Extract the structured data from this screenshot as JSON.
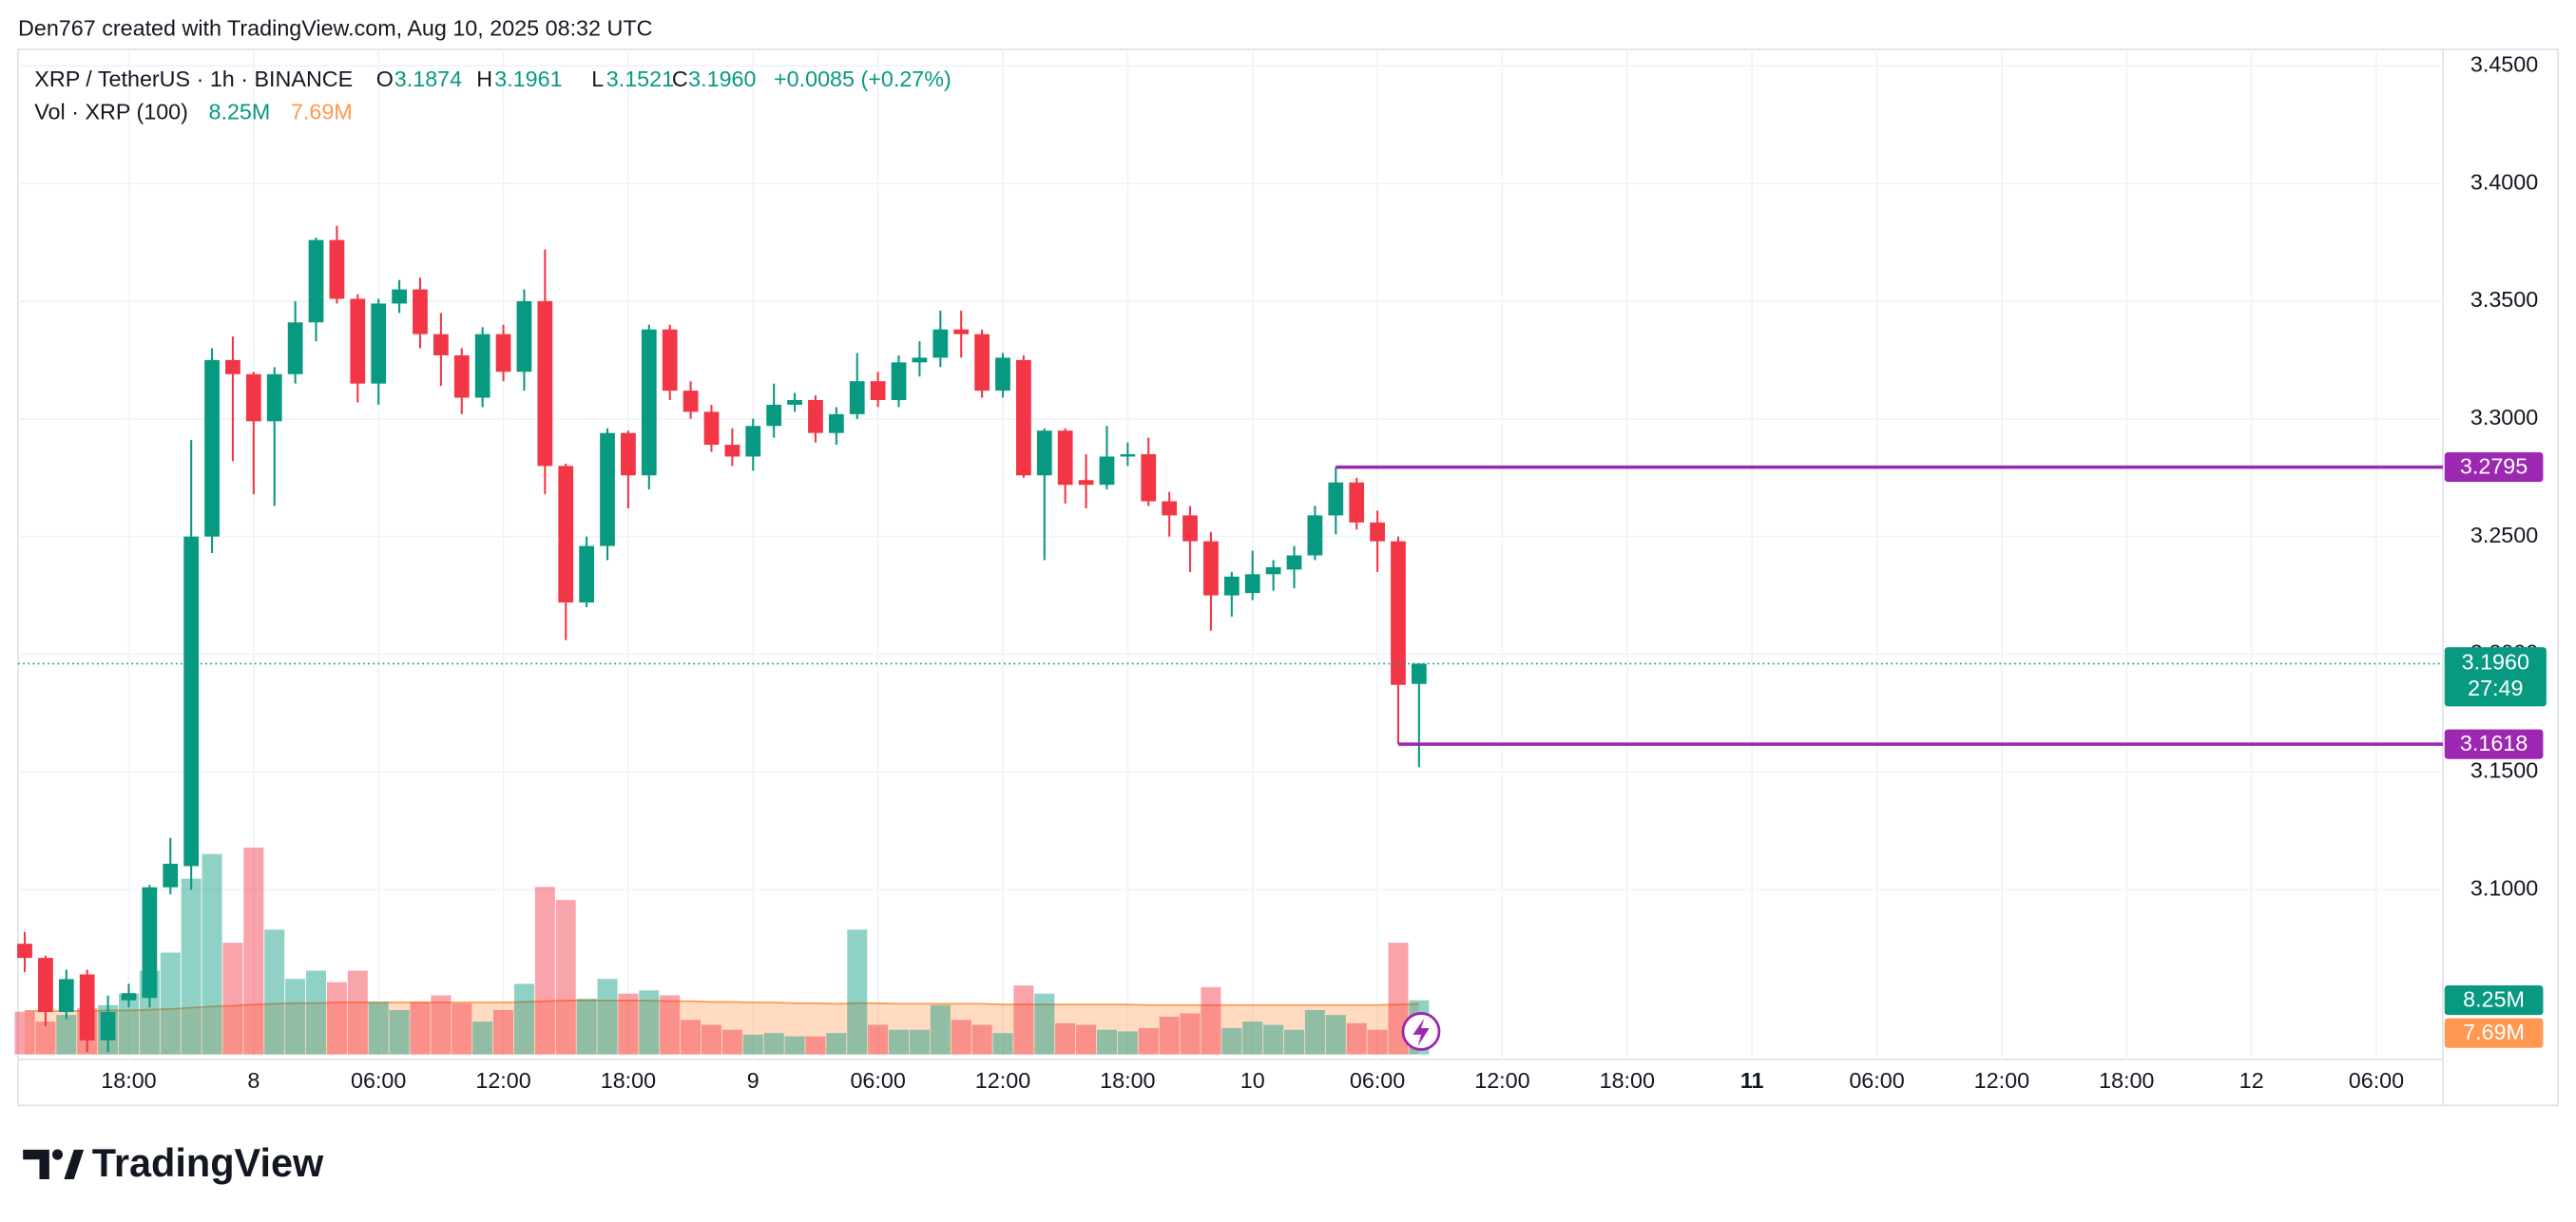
{
  "header": {
    "credit": "Den767 created with TradingView.com, Aug 10, 2025 08:32 UTC"
  },
  "legend": {
    "symbol": "XRP / TetherUS · 1h · BINANCE",
    "o_label": "O",
    "o": "3.1874",
    "h_label": "H",
    "h": "3.1961",
    "l_label": "L",
    "l": "3.1521",
    "c_label": "C",
    "c": "3.1960",
    "change": "+0.0085 (+0.27%)",
    "vol_title": "Vol · XRP (100)",
    "vol": "8.25M",
    "vol_ma": "7.69M"
  },
  "footer": {
    "brand": "TradingView"
  },
  "chart_data": {
    "type": "candlestick",
    "up_color": "#089981",
    "down_color": "#f23645",
    "grid": true,
    "xlim": [
      -0.32,
      116.2
    ],
    "xticks": [
      {
        "value": 5,
        "label": "18:00"
      },
      {
        "value": 11,
        "label": "8"
      },
      {
        "value": 17,
        "label": "06:00"
      },
      {
        "value": 23,
        "label": "12:00"
      },
      {
        "value": 29,
        "label": "18:00"
      },
      {
        "value": 35,
        "label": "9"
      },
      {
        "value": 41,
        "label": "06:00"
      },
      {
        "value": 47,
        "label": "12:00"
      },
      {
        "value": 53,
        "label": "18:00"
      },
      {
        "value": 59,
        "label": "10"
      },
      {
        "value": 65,
        "label": "06:00"
      },
      {
        "value": 71,
        "label": "12:00"
      },
      {
        "value": 77,
        "label": "18:00"
      },
      {
        "value": 83,
        "label": "11"
      },
      {
        "value": 89,
        "label": "06:00"
      },
      {
        "value": 95,
        "label": "12:00"
      },
      {
        "value": 101,
        "label": "18:00"
      },
      {
        "value": 107,
        "label": "12"
      },
      {
        "value": 113,
        "label": "06:00"
      }
    ],
    "ylim": [
      3.03,
      3.457
    ],
    "yticks": [
      {
        "value": 3.1,
        "label": "3.1000"
      },
      {
        "value": 3.15,
        "label": "3.1500"
      },
      {
        "value": 3.2,
        "label": "3.2000"
      },
      {
        "value": 3.25,
        "label": "3.2500"
      },
      {
        "value": 3.3,
        "label": "3.3000"
      },
      {
        "value": 3.35,
        "label": "3.3500"
      },
      {
        "value": 3.4,
        "label": "3.4000"
      },
      {
        "value": 3.45,
        "label": "3.4500"
      }
    ],
    "open": [
      3.077,
      3.071,
      3.048,
      3.064,
      3.036,
      3.053,
      3.054,
      3.101,
      3.11,
      3.25,
      3.325,
      3.319,
      3.299,
      3.319,
      3.341,
      3.376,
      3.351,
      3.315,
      3.349,
      3.355,
      3.336,
      3.327,
      3.309,
      3.336,
      3.32,
      3.35,
      3.28,
      3.222,
      3.246,
      3.294,
      3.276,
      3.338,
      3.312,
      3.303,
      3.289,
      3.284,
      3.297,
      3.306,
      3.308,
      3.294,
      3.302,
      3.316,
      3.308,
      3.324,
      3.326,
      3.338,
      3.336,
      3.312,
      3.325,
      3.276,
      3.295,
      3.274,
      3.272,
      3.284,
      3.285,
      3.265,
      3.259,
      3.248,
      3.225,
      3.226,
      3.234,
      3.236,
      3.242,
      3.259,
      3.273,
      3.256,
      3.248,
      3.1874
    ],
    "high": [
      3.082,
      3.072,
      3.066,
      3.066,
      3.055,
      3.06,
      3.102,
      3.122,
      3.291,
      3.33,
      3.335,
      3.32,
      3.322,
      3.35,
      3.377,
      3.382,
      3.353,
      3.351,
      3.359,
      3.36,
      3.345,
      3.33,
      3.339,
      3.34,
      3.355,
      3.372,
      3.281,
      3.25,
      3.296,
      3.295,
      3.34,
      3.34,
      3.316,
      3.306,
      3.296,
      3.3,
      3.315,
      3.311,
      3.31,
      3.305,
      3.328,
      3.32,
      3.327,
      3.333,
      3.346,
      3.346,
      3.338,
      3.328,
      3.327,
      3.296,
      3.296,
      3.285,
      3.297,
      3.29,
      3.292,
      3.269,
      3.263,
      3.252,
      3.235,
      3.244,
      3.24,
      3.246,
      3.263,
      3.2795,
      3.275,
      3.261,
      3.25,
      3.1961
    ],
    "low": [
      3.065,
      3.042,
      3.045,
      3.031,
      3.031,
      3.05,
      3.05,
      3.098,
      3.1,
      3.243,
      3.282,
      3.268,
      3.263,
      3.315,
      3.333,
      3.349,
      3.307,
      3.306,
      3.345,
      3.33,
      3.314,
      3.302,
      3.305,
      3.316,
      3.312,
      3.268,
      3.206,
      3.22,
      3.24,
      3.262,
      3.27,
      3.308,
      3.3,
      3.286,
      3.28,
      3.278,
      3.292,
      3.303,
      3.29,
      3.289,
      3.3,
      3.305,
      3.305,
      3.318,
      3.322,
      3.326,
      3.309,
      3.309,
      3.275,
      3.24,
      3.264,
      3.262,
      3.27,
      3.28,
      3.263,
      3.25,
      3.235,
      3.21,
      3.216,
      3.223,
      3.227,
      3.228,
      3.24,
      3.251,
      3.253,
      3.235,
      3.1618,
      3.1521
    ],
    "close": [
      3.071,
      3.048,
      3.062,
      3.036,
      3.048,
      3.056,
      3.101,
      3.111,
      3.25,
      3.325,
      3.319,
      3.299,
      3.319,
      3.341,
      3.376,
      3.351,
      3.315,
      3.349,
      3.355,
      3.336,
      3.327,
      3.309,
      3.336,
      3.32,
      3.35,
      3.28,
      3.222,
      3.246,
      3.294,
      3.276,
      3.338,
      3.312,
      3.303,
      3.289,
      3.284,
      3.297,
      3.306,
      3.308,
      3.294,
      3.302,
      3.316,
      3.308,
      3.324,
      3.326,
      3.338,
      3.336,
      3.312,
      3.326,
      3.276,
      3.295,
      3.272,
      3.272,
      3.284,
      3.285,
      3.265,
      3.259,
      3.248,
      3.225,
      3.233,
      3.234,
      3.237,
      3.242,
      3.259,
      3.273,
      3.256,
      3.248,
      3.187,
      3.196
    ],
    "y2lim": [
      0,
      40000000
    ],
    "volume": [
      6500000,
      5000000,
      6000000,
      7000000,
      7500000,
      9250000,
      12750000,
      15500000,
      26750000,
      30500000,
      17000000,
      31500000,
      19000000,
      11500000,
      12750000,
      11000000,
      12750000,
      8000000,
      6750000,
      8000000,
      9000000,
      7750000,
      5000000,
      6750000,
      10750000,
      25500000,
      23500000,
      8500000,
      11500000,
      9250000,
      9750000,
      9000000,
      5250000,
      4500000,
      3750000,
      3000000,
      3250000,
      2750000,
      2750000,
      3250000,
      19000000,
      4500000,
      3750000,
      3750000,
      7500000,
      5250000,
      4500000,
      3250000,
      10500000,
      9250000,
      4750000,
      4500000,
      3750000,
      3500000,
      4000000,
      5750000,
      6250000,
      10250000,
      4000000,
      5000000,
      4500000,
      3750000,
      6750000,
      6000000,
      4750000,
      3750000,
      17000000,
      8250000
    ],
    "volume_ma": [
      6600000,
      6600000,
      6600000,
      6600000,
      6700000,
      6700000,
      6800000,
      6900000,
      7100000,
      7300000,
      7400000,
      7600000,
      7700000,
      7800000,
      7800000,
      7900000,
      7900000,
      7900000,
      7900000,
      7900000,
      7900000,
      7900000,
      7900000,
      7900000,
      8000000,
      8100000,
      8200000,
      8200000,
      8200000,
      8200000,
      8200000,
      8100000,
      8100000,
      8000000,
      8000000,
      7900000,
      7900000,
      7800000,
      7800000,
      7700000,
      7800000,
      7800000,
      7700000,
      7700000,
      7700000,
      7700000,
      7700000,
      7600000,
      7600000,
      7600000,
      7600000,
      7600000,
      7600000,
      7600000,
      7500000,
      7500000,
      7500000,
      7500000,
      7500000,
      7500000,
      7500000,
      7500000,
      7500000,
      7500000,
      7500000,
      7500000,
      7600000,
      7690000
    ],
    "volume_ma_color": "#ff9850",
    "volume_tag": {
      "value": 8250000,
      "label": "8.25M"
    },
    "volume_ma_tag": {
      "value": 7690000,
      "label": "7.69M"
    },
    "last_price": {
      "value": 3.196,
      "label": "3.1960",
      "countdown": "27:49"
    },
    "hlines": [
      {
        "value": 3.2795,
        "start": 63,
        "color": "#9c27b0"
      },
      {
        "value": 3.1618,
        "start": 66,
        "color": "#9c27b0"
      }
    ]
  }
}
